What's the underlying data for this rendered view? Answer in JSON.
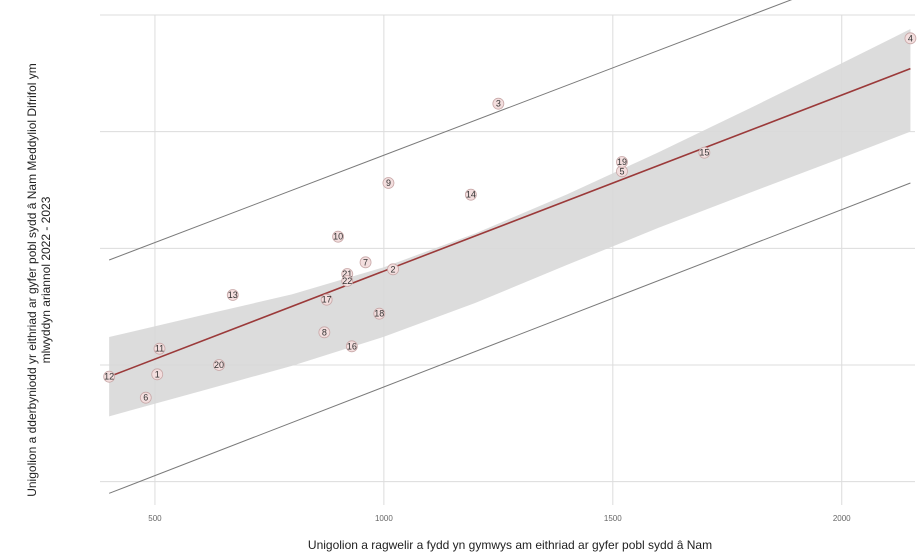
{
  "chart_data": {
    "type": "scatter",
    "xlabel": "Unigolion a ragwelir a fydd yn gymwys am eithriad ar gyfer pobl sydd â Nam",
    "ylabel": "Unigolion a dderbyniodd yr eithriad ar gyfer pobl sydd â Nam Meddyliol Difrifol ym mlwyddyn ariannol 2022 - 2023",
    "x_ticks": [
      "500",
      "1000",
      "1500",
      "2000"
    ],
    "xlim": [
      380,
      2160
    ],
    "ylim": [
      0,
      2100
    ],
    "grid": true,
    "points": [
      {
        "label": "1",
        "x": 505,
        "y": 560
      },
      {
        "label": "2",
        "x": 1020,
        "y": 1010
      },
      {
        "label": "3",
        "x": 1250,
        "y": 1720
      },
      {
        "label": "4",
        "x": 2150,
        "y": 2000
      },
      {
        "label": "5",
        "x": 1520,
        "y": 1430
      },
      {
        "label": "6",
        "x": 480,
        "y": 460
      },
      {
        "label": "7",
        "x": 960,
        "y": 1040
      },
      {
        "label": "8",
        "x": 870,
        "y": 740
      },
      {
        "label": "9",
        "x": 1010,
        "y": 1380
      },
      {
        "label": "10",
        "x": 900,
        "y": 1150
      },
      {
        "label": "11",
        "x": 510,
        "y": 670
      },
      {
        "label": "12",
        "x": 400,
        "y": 550
      },
      {
        "label": "13",
        "x": 670,
        "y": 900
      },
      {
        "label": "14",
        "x": 1190,
        "y": 1330
      },
      {
        "label": "15",
        "x": 1700,
        "y": 1510
      },
      {
        "label": "16",
        "x": 930,
        "y": 680
      },
      {
        "label": "17",
        "x": 875,
        "y": 880
      },
      {
        "label": "18",
        "x": 990,
        "y": 820
      },
      {
        "label": "19",
        "x": 1520,
        "y": 1470
      },
      {
        "label": "20",
        "x": 640,
        "y": 600
      },
      {
        "label": "21",
        "x": 920,
        "y": 990
      },
      {
        "label": "22",
        "x": 920,
        "y": 960
      }
    ],
    "fit_line": {
      "x": [
        400,
        2150
      ],
      "y": [
        550,
        1870
      ]
    },
    "confidence_band": {
      "x": [
        400,
        600,
        800,
        1000,
        1200,
        1400,
        1600,
        1800,
        2000,
        2150
      ],
      "upper": [
        720,
        812,
        903,
        1019,
        1164,
        1331,
        1512,
        1701,
        1893,
        2040
      ],
      "lower": [
        380,
        488,
        597,
        721,
        866,
        1029,
        1188,
        1339,
        1487,
        1600
      ]
    },
    "prediction_interval": {
      "x": [
        400,
        2150
      ],
      "upper": [
        1050,
        2360
      ],
      "lower": [
        50,
        1380
      ]
    },
    "colors": {
      "point_fill": "#f3dede",
      "point_stroke": "#c8a8a8",
      "fit_line": "#9b3a3a",
      "band": "#d8d8d8",
      "interval_line": "#7a7a7a",
      "grid": "#dcdcdc"
    }
  }
}
